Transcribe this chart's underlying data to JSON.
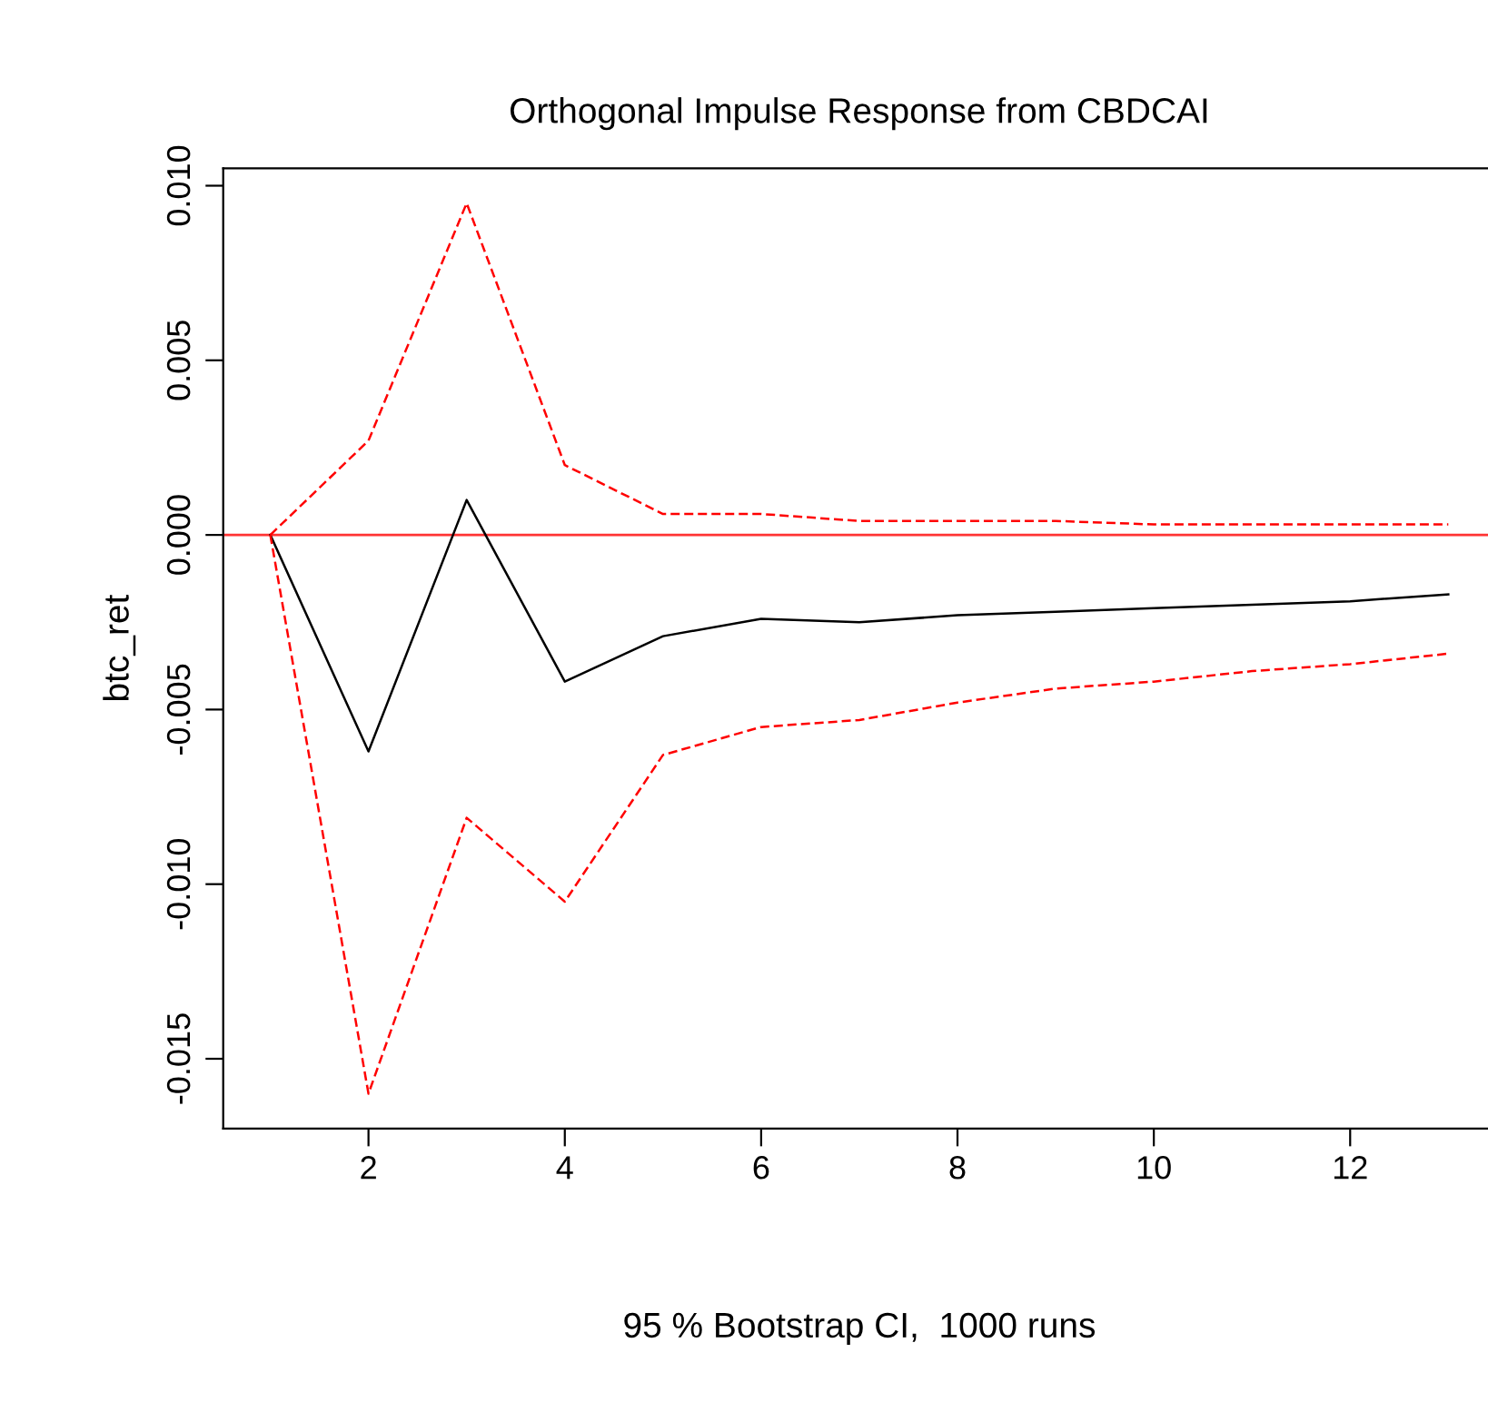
{
  "chart_data": {
    "type": "line",
    "title": "Orthogonal Impulse Response from CBDCAI",
    "xlabel": "95 % Bootstrap CI,  1000 runs",
    "ylabel": "btc_ret",
    "x": [
      1,
      2,
      3,
      4,
      5,
      6,
      7,
      8,
      9,
      10,
      11,
      12,
      13
    ],
    "series": [
      {
        "color": "#000000",
        "line_style": "solid",
        "values": [
          0,
          -0.0062,
          0.001,
          -0.0042,
          -0.0029,
          -0.0024,
          -0.0025,
          -0.0023,
          -0.0022,
          -0.0021,
          -0.002,
          -0.0019,
          -0.0017
        ]
      },
      {
        "color": "#ff0000",
        "line_style": "dashed",
        "values": [
          0,
          0.0027,
          0.0095,
          0.002,
          0.0006,
          0.0006,
          0.0004,
          0.0004,
          0.0004,
          0.0003,
          0.0003,
          0.0003,
          0.0003
        ]
      },
      {
        "color": "#ff0000",
        "line_style": "dashed",
        "values": [
          0,
          -0.016,
          -0.0081,
          -0.0105,
          -0.0063,
          -0.0055,
          -0.0053,
          -0.0048,
          -0.0044,
          -0.0042,
          -0.0039,
          -0.0037,
          -0.0034
        ]
      }
    ],
    "xlim": [
      0.52,
      13.48
    ],
    "ylim": [
      -0.017,
      0.0105
    ],
    "xticks": [
      2,
      4,
      6,
      8,
      10,
      12
    ],
    "yticks": [
      {
        "value": -0.015,
        "label": "-0.015"
      },
      {
        "value": -0.01,
        "label": "-0.010"
      },
      {
        "value": -0.005,
        "label": "-0.005"
      },
      {
        "value": 0,
        "label": "0.000"
      },
      {
        "value": 0.005,
        "label": "0.005"
      },
      {
        "value": 0.01,
        "label": "0.010"
      }
    ],
    "ref_lines": [
      {
        "axis": "y",
        "value": 0,
        "color": "#ff0000"
      }
    ],
    "grid": false,
    "marker": "none"
  }
}
